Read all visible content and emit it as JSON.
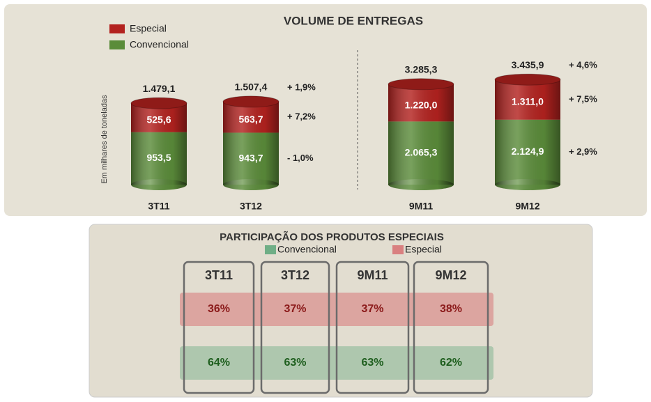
{
  "chart_data": [
    {
      "type": "bar",
      "stacked": true,
      "title": "VOLUME DE ENTREGAS",
      "y_label": "Em milhares de toneladas",
      "categories": [
        "3T11",
        "3T12"
      ],
      "ylim": [
        0,
        2000
      ],
      "series": [
        {
          "name": "Convencional",
          "color": "#5b8c3a",
          "values": [
            953.5,
            943.7
          ],
          "value_labels": [
            "953,5",
            "943,7"
          ],
          "change": "- 1,0%"
        },
        {
          "name": "Especial",
          "color": "#b3221f",
          "values": [
            525.6,
            563.7
          ],
          "value_labels": [
            "525,6",
            "563,7"
          ],
          "change": "+ 7,2%"
        }
      ],
      "totals": [
        1479.1,
        1507.4
      ],
      "total_labels": [
        "1.479,1",
        "1.507,4"
      ],
      "total_change": "+ 1,9%"
    },
    {
      "type": "bar",
      "stacked": true,
      "categories": [
        "9M11",
        "9M12"
      ],
      "ylim": [
        0,
        3600
      ],
      "series": [
        {
          "color": "#5b8c3a",
          "values": [
            2065.3,
            2124.9
          ],
          "value_labels": [
            "2.065,3",
            "2.124,9"
          ],
          "change": "+ 2,9%"
        },
        {
          "color": "#b3221f",
          "values": [
            1220.0,
            1311.0
          ],
          "value_labels": [
            "1.220,0",
            "1.311,0"
          ],
          "change": "+ 7,5%"
        }
      ],
      "totals": [
        3285.3,
        3435.9
      ],
      "total_labels": [
        "3.285,3",
        "3.435,9"
      ],
      "total_change": "+ 4,6%"
    },
    {
      "type": "table",
      "title": "PARTICIPAÇÃO DOS PRODUTOS ESPECIAIS",
      "columns": [
        "3T11",
        "3T12",
        "9M11",
        "9M12"
      ],
      "series": [
        {
          "name": "Especial",
          "color": "#d98080",
          "values": [
            "36%",
            "37%",
            "37%",
            "38%"
          ]
        },
        {
          "name": "Convencional",
          "color": "#6fae86",
          "values": [
            "64%",
            "63%",
            "63%",
            "62%"
          ]
        }
      ]
    }
  ]
}
